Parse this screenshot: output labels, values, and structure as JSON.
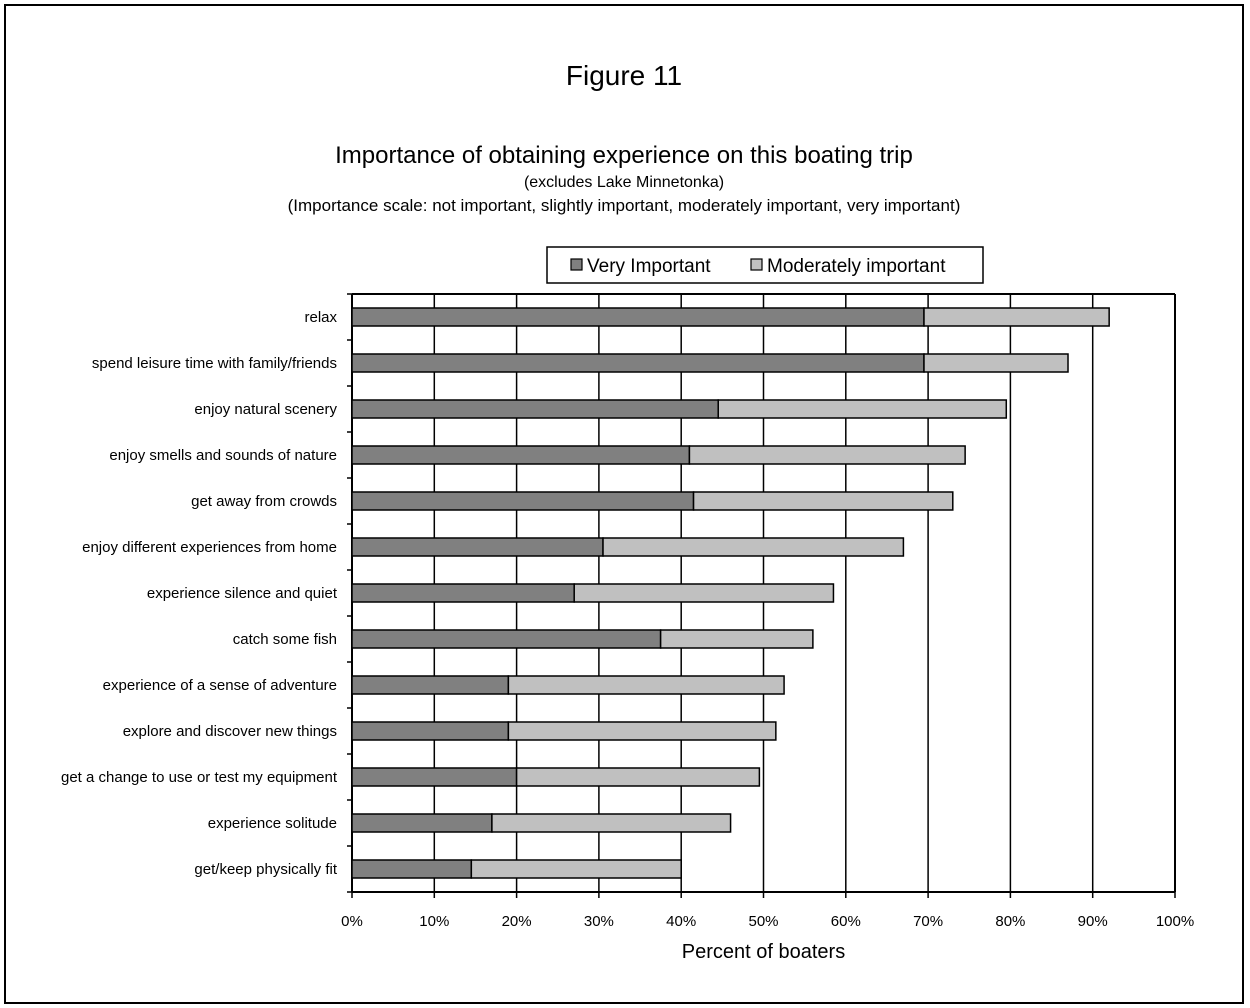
{
  "figure_label": "Figure 11",
  "colors": {
    "very_important": "#808080",
    "moderately_important": "#c0c0c0",
    "stroke": "#000000"
  },
  "chart_data": {
    "type": "bar",
    "orientation": "horizontal",
    "stacked": true,
    "title": "Importance of obtaining experience on this boating trip",
    "subtitle": "(excludes Lake Minnetonka)",
    "subtitle2": "(Importance scale: not important, slightly important, moderately important, very important)",
    "xlabel": "Percent of boaters",
    "ylabel": "",
    "xlim": [
      0,
      100
    ],
    "x_ticks": [
      "0%",
      "10%",
      "20%",
      "30%",
      "40%",
      "50%",
      "60%",
      "70%",
      "80%",
      "90%",
      "100%"
    ],
    "grid": true,
    "legend_position": "top",
    "categories": [
      "relax",
      "spend leisure time with family/friends",
      "enjoy natural scenery",
      "enjoy smells and sounds of nature",
      "get away from crowds",
      "enjoy different experiences from home",
      "experience silence and quiet",
      "catch some fish",
      "experience of a sense of adventure",
      "explore and discover new things",
      "get a change to use or test my equipment",
      "experience solitude",
      "get/keep physically fit"
    ],
    "series": [
      {
        "name": "Very Important",
        "values": [
          69.5,
          69.5,
          44.5,
          41,
          41.5,
          30.5,
          27,
          37.5,
          19,
          19,
          20,
          17,
          14.5
        ]
      },
      {
        "name": "Moderately important",
        "values": [
          22.5,
          17.5,
          35,
          33.5,
          31.5,
          36.5,
          31.5,
          18.5,
          33.5,
          32.5,
          29.5,
          29,
          25.5
        ]
      }
    ]
  }
}
